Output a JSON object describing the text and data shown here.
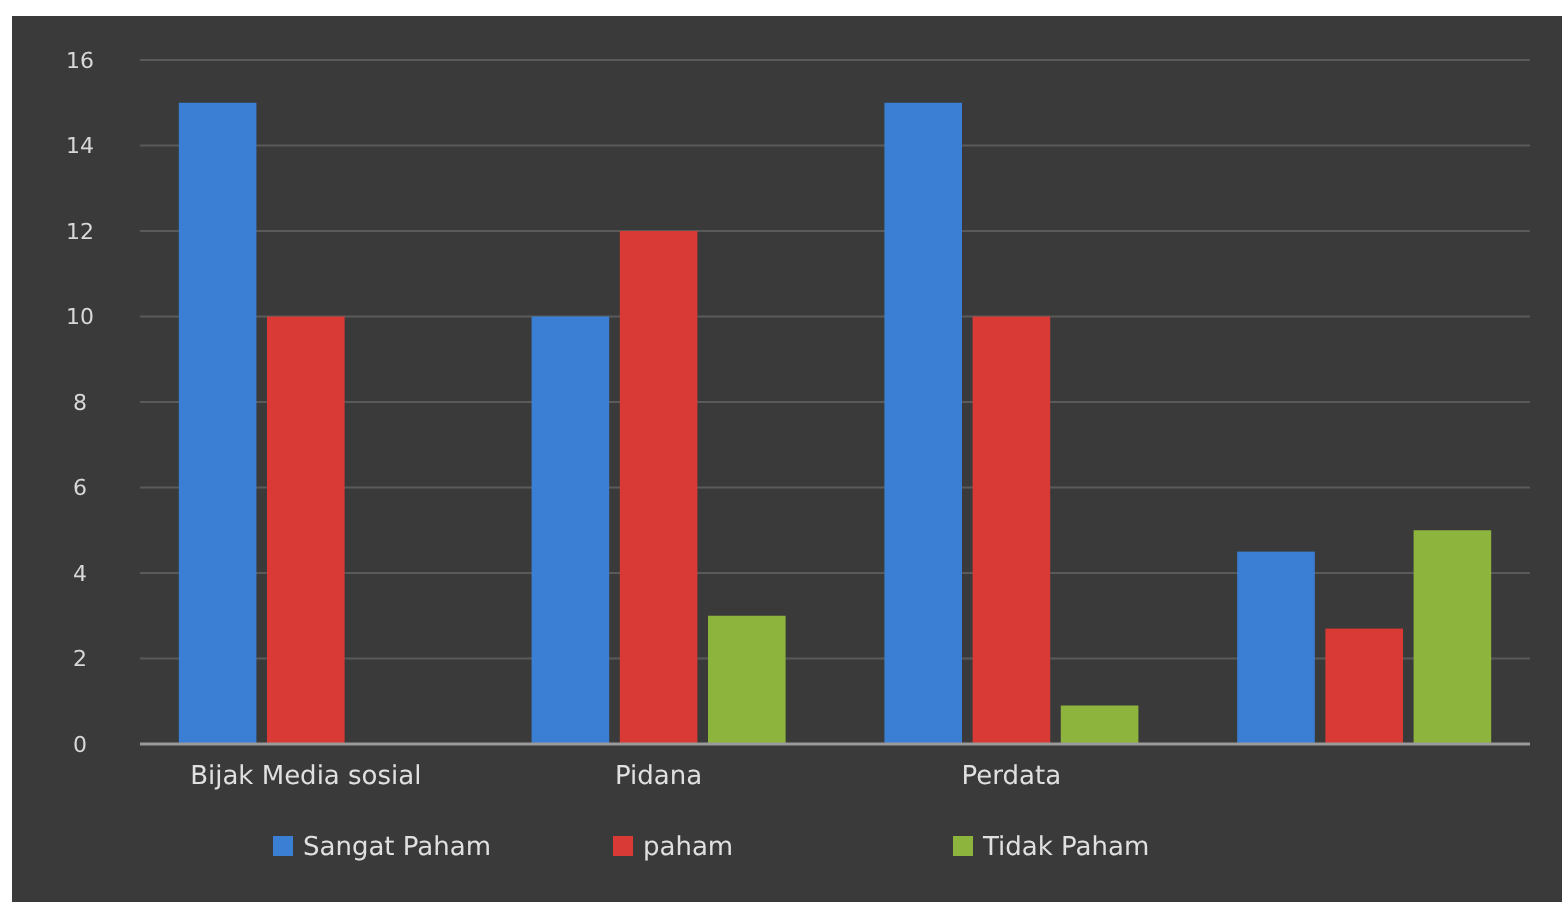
{
  "chart_data": {
    "type": "bar",
    "categories": [
      "Bijak Media sosial",
      "Pidana",
      "Perdata",
      null
    ],
    "series": [
      {
        "name": "Sangat Paham",
        "color": "#3b7fd4",
        "values": [
          15,
          10,
          15,
          4.5
        ]
      },
      {
        "name": "paham",
        "color": "#d93a35",
        "values": [
          10,
          12,
          10,
          2.7
        ]
      },
      {
        "name": "Tidak Paham",
        "color": "#8db43c",
        "values": [
          0,
          3,
          0.9,
          5
        ]
      }
    ],
    "ylim": [
      0,
      16
    ],
    "yticks": [
      0,
      2,
      4,
      6,
      8,
      10,
      12,
      14,
      16
    ],
    "grid": "y",
    "legend": "bottom"
  }
}
